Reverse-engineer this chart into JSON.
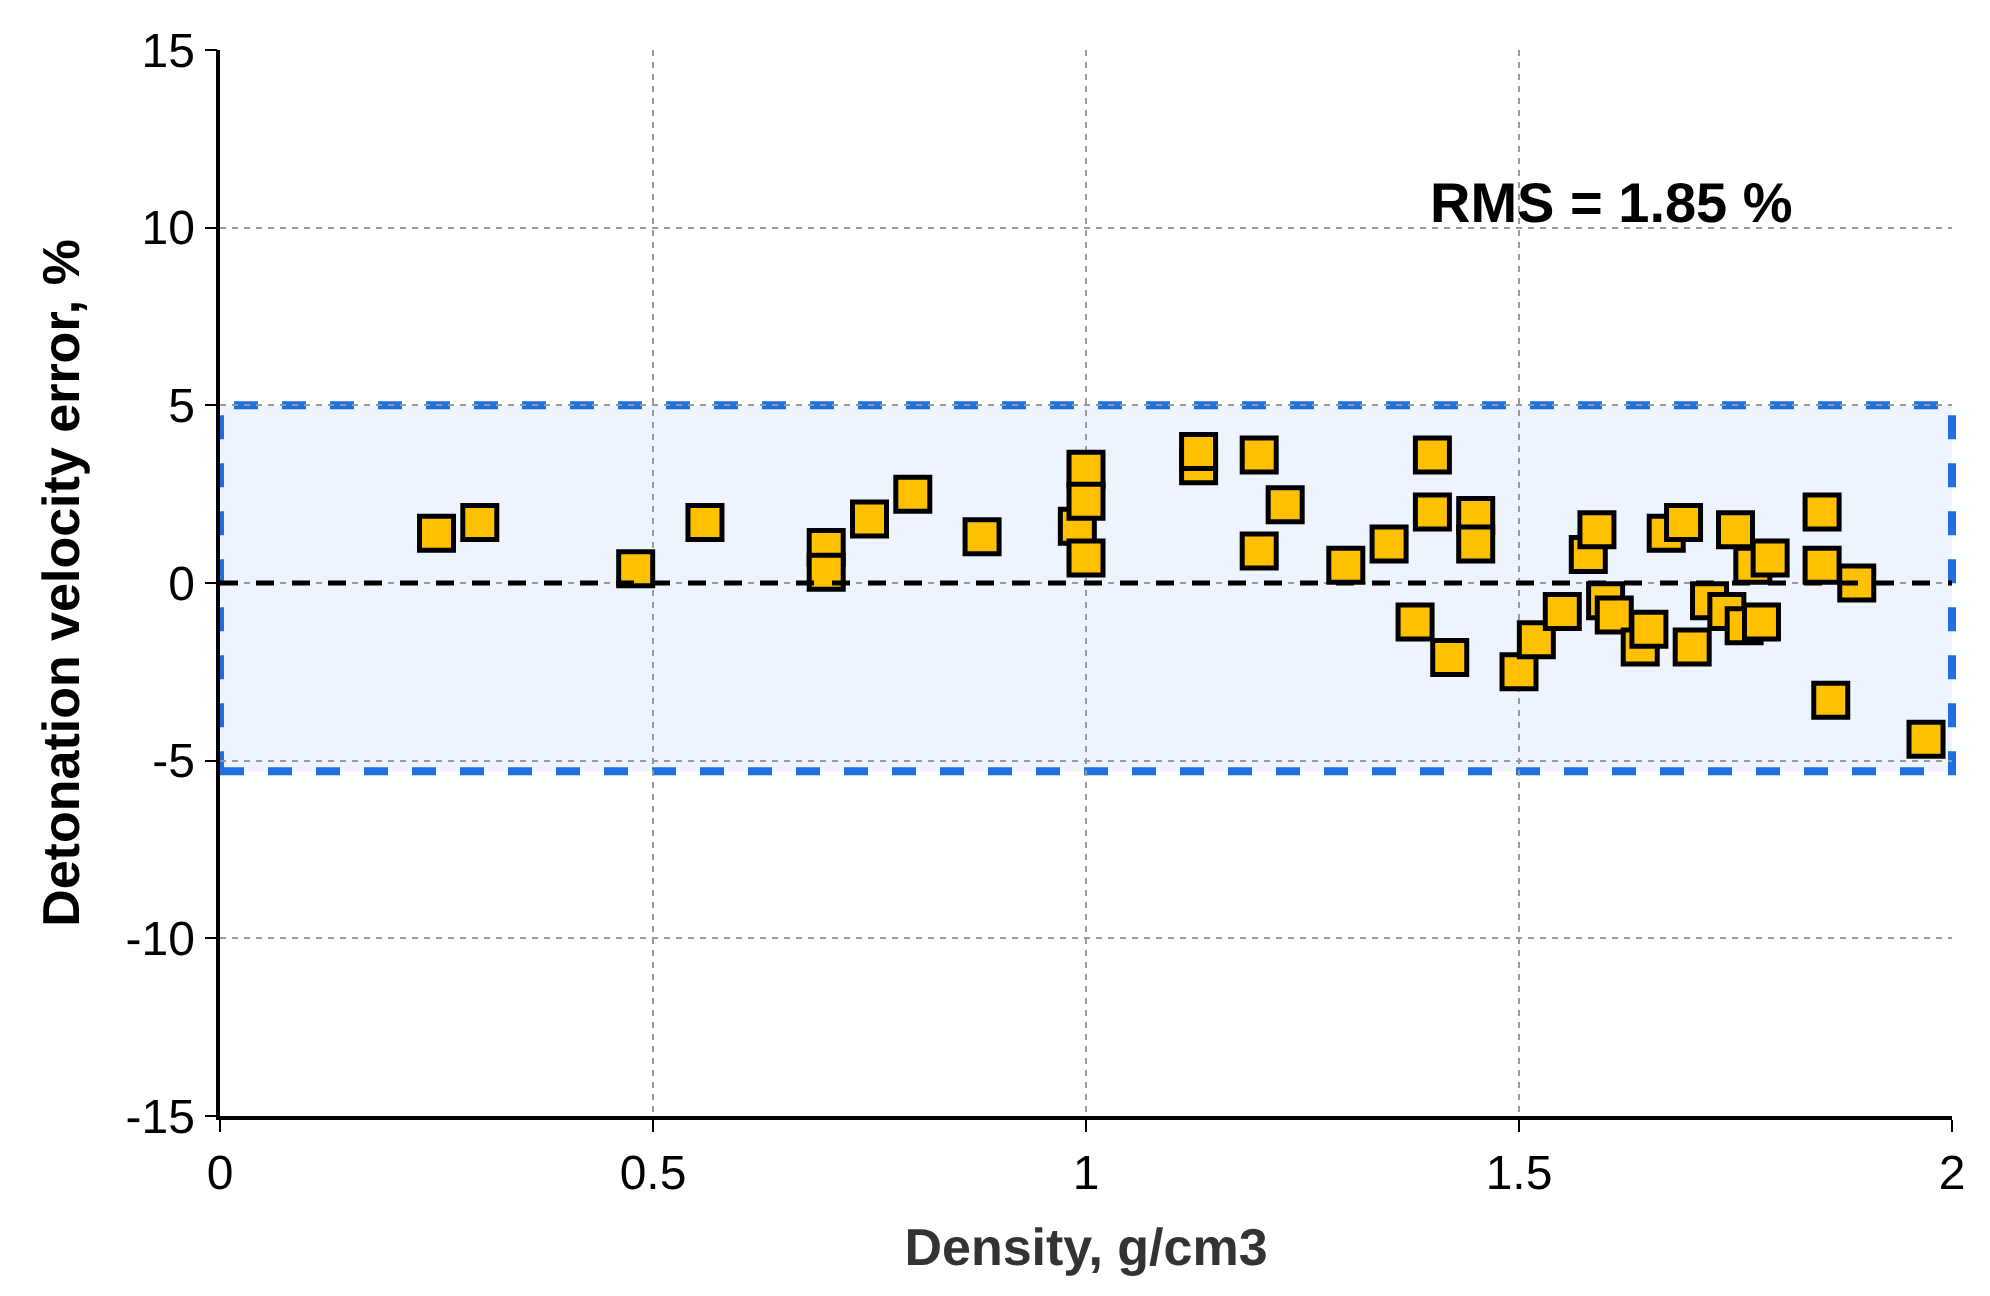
{
  "chart_data": {
    "type": "scatter",
    "xlabel": "Density, g/cm3",
    "ylabel": "Detonation velocity error, %",
    "annotations": [
      "RMS = 1.85 %"
    ],
    "x": [
      0.25,
      0.3,
      0.48,
      0.56,
      0.7,
      0.7,
      0.75,
      0.8,
      0.88,
      0.99,
      1.0,
      1.0,
      1.0,
      1.13,
      1.13,
      1.2,
      1.2,
      1.23,
      1.3,
      1.35,
      1.38,
      1.4,
      1.4,
      1.42,
      1.45,
      1.45,
      1.5,
      1.52,
      1.55,
      1.58,
      1.59,
      1.6,
      1.61,
      1.64,
      1.65,
      1.67,
      1.69,
      1.7,
      1.72,
      1.74,
      1.75,
      1.76,
      1.77,
      1.78,
      1.79,
      1.85,
      1.85,
      1.86,
      1.89,
      1.97
    ],
    "series": [
      {
        "color": "#ffc000",
        "values": [
          1.4,
          1.7,
          0.4,
          1.7,
          1.0,
          0.3,
          1.8,
          2.5,
          1.3,
          1.6,
          3.2,
          2.3,
          0.7,
          3.3,
          3.7,
          3.6,
          0.9,
          2.2,
          0.5,
          1.1,
          -1.1,
          3.6,
          2.0,
          -2.1,
          1.9,
          1.1,
          -2.5,
          -1.6,
          -0.8,
          0.8,
          1.5,
          -0.5,
          -0.9,
          -1.8,
          -1.3,
          1.4,
          1.7,
          -1.8,
          -0.5,
          -0.8,
          1.5,
          -1.2,
          0.5,
          -1.1,
          0.7,
          2.0,
          0.5,
          -3.3,
          0.0,
          -4.4
        ]
      }
    ],
    "marker": "square",
    "xlim": [
      0,
      2
    ],
    "xticks": [
      0,
      0.5,
      1,
      1.5,
      2
    ],
    "ylim": [
      -15,
      15
    ],
    "yticks": [
      -15,
      -10,
      -5,
      0,
      5,
      10,
      15
    ],
    "grid": true,
    "ref_lines": [
      {
        "axis": "y",
        "value": 0,
        "color": "#000000",
        "line_style": "dashed"
      }
    ],
    "bands": [
      {
        "axis": "y",
        "from": -5.3,
        "to": 5,
        "color": "#1f6fe0"
      }
    ]
  }
}
